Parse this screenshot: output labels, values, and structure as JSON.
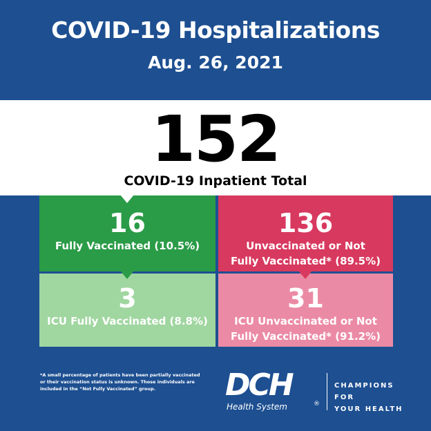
{
  "header": {
    "title": "COVID-19 Hospitalizations",
    "date": "Aug. 26, 2021"
  },
  "total": {
    "number": "152",
    "label": "COVID-19 Inpatient Total"
  },
  "boxes": {
    "fully_vaccinated": {
      "number": "16",
      "label": "Fully Vaccinated (10.5%)"
    },
    "unvaccinated": {
      "number": "136",
      "label_line1": "Unvaccinated or Not",
      "label_line2": "Fully Vaccinated* (89.5%)"
    },
    "icu_fully_vaccinated": {
      "number": "3",
      "label": "ICU Fully Vaccinated (8.8%)"
    },
    "icu_unvaccinated": {
      "number": "31",
      "label_line1": "ICU Unvaccinated or Not",
      "label_line2": "Fully Vaccinated* (91.2%)"
    }
  },
  "footnote": {
    "line1": "*A small percentage of patients have been partially vaccinated",
    "line2": "or their vaccination status is unknown. Those individuals are",
    "line3": "included in the “Not Fully Vaccinated” group."
  },
  "logo": {
    "wordmark": "DCH",
    "subtitle": "Health System",
    "registered": "®"
  },
  "tagline": {
    "line1": "CHAMPIONS FOR",
    "line2": "YOUR HEALTH"
  },
  "colors": {
    "background": "#1d4f91",
    "green_dark": "#2a9b47",
    "green_light": "#a0d6a0",
    "red_dark": "#d8395f",
    "pink_light": "#eb8aa5"
  }
}
